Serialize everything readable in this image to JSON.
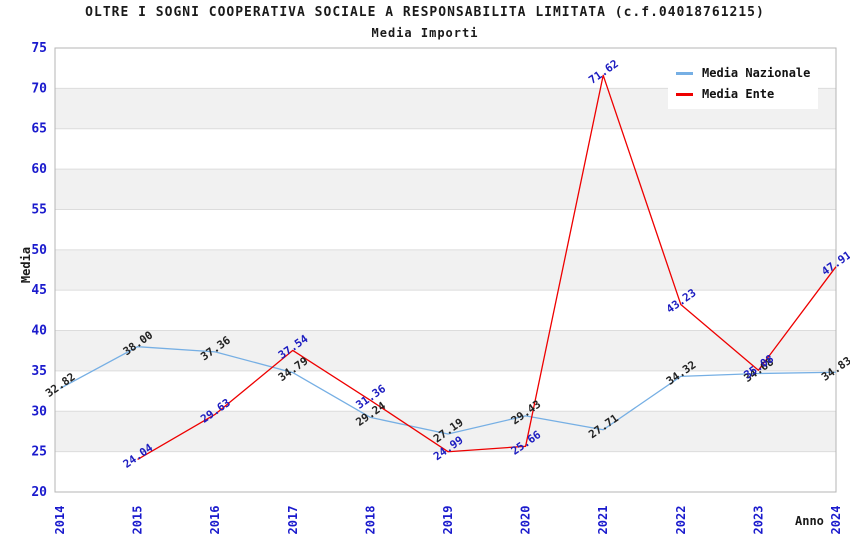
{
  "header": {
    "title": "OLTRE I SOGNI COOPERATIVA SOCIALE A RESPONSABILITA LIMITATA (c.f.04018761215)",
    "subtitle": "Media Importi"
  },
  "axes": {
    "y_label": "Media",
    "x_label": "Anno",
    "y_ticks": [
      20,
      25,
      30,
      35,
      40,
      45,
      50,
      55,
      60,
      65,
      70,
      75
    ],
    "tick_color": "#1a1acd"
  },
  "legend": {
    "items": [
      {
        "label": "Media Nazionale",
        "color": "#76afe4"
      },
      {
        "label": "Media Ente",
        "color": "#ee0000"
      }
    ]
  },
  "colors": {
    "band_fill": "#f1f1f1",
    "gridline": "#dcdcdc",
    "plot_border": "#b5b5b5",
    "nazionale_line": "#76afe4",
    "ente_line": "#ee0000",
    "nazionale_label": "#222222",
    "ente_label": "#1c1cc0"
  },
  "chart_data": {
    "type": "line",
    "title": "OLTRE I SOGNI COOPERATIVA SOCIALE A RESPONSABILITA LIMITATA (c.f.04018761215)",
    "subtitle": "Media Importi",
    "xlabel": "Anno",
    "ylabel": "Media",
    "x": [
      "2014",
      "2015",
      "2016",
      "2017",
      "2018",
      "2019",
      "2020",
      "2021",
      "2022",
      "2023",
      "2024"
    ],
    "series": [
      {
        "name": "Media Nazionale",
        "color": "#76afe4",
        "label_color": "#222222",
        "values": [
          32.82,
          38.0,
          37.36,
          34.79,
          29.24,
          27.19,
          29.43,
          27.71,
          34.32,
          34.68,
          34.83
        ]
      },
      {
        "name": "Media Ente",
        "color": "#ee0000",
        "label_color": "#1c1cc0",
        "values": [
          null,
          24.04,
          29.63,
          37.54,
          31.36,
          24.99,
          25.66,
          71.62,
          43.23,
          35.08,
          47.91
        ]
      }
    ],
    "ylim": [
      20,
      75
    ],
    "ytick_step": 5,
    "band_bases": [
      25,
      35,
      45,
      55,
      65
    ],
    "grid": true,
    "legend_position": "top-right",
    "label_decimals": 2
  }
}
